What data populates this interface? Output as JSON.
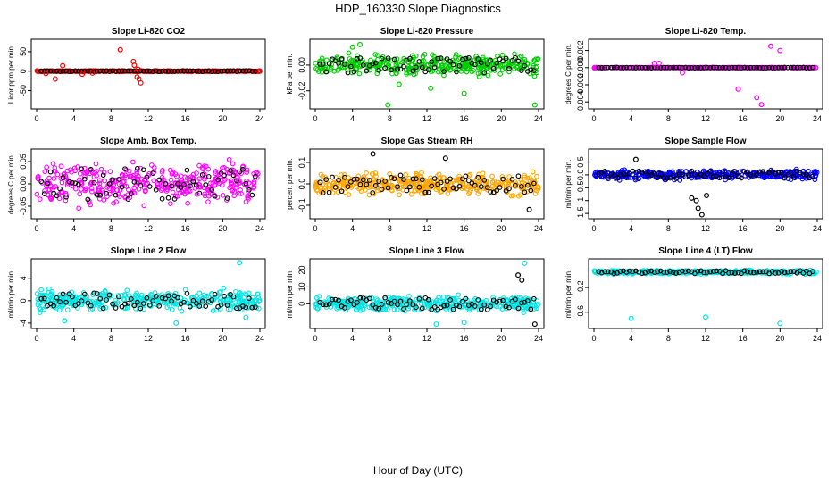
{
  "figure": {
    "title": "HDP_160330  Slope Diagnostics",
    "xlabel": "Hour of Day (UTC)"
  },
  "chart_data": [
    {
      "type": "scatter",
      "title": "Slope Li-820 CO2",
      "ylabel": "Licor ppm per min.",
      "xlim": [
        0,
        24
      ],
      "ylim": [
        -90,
        75
      ],
      "xticks": [
        0,
        4,
        8,
        12,
        16,
        20,
        24
      ],
      "yticks": [
        -50,
        0,
        50
      ],
      "color": "#ff0000",
      "baseline": 0,
      "spread": 2,
      "series": [
        {
          "name": "outliers",
          "color": "#ff0000",
          "x": [
            1.0,
            2.0,
            2.8,
            4.9,
            9.0,
            10.4,
            10.5,
            10.8,
            11.0,
            11.2,
            10.9,
            6.0
          ],
          "y": [
            -6,
            -20,
            14,
            -8,
            55,
            25,
            15,
            -15,
            -20,
            -30,
            5,
            -5
          ]
        }
      ]
    },
    {
      "type": "scatter",
      "title": "Slope Li-820 Pressure",
      "ylabel": "kPa per min.",
      "xlim": [
        0,
        24
      ],
      "ylim": [
        -0.032,
        0.018
      ],
      "xticks": [
        0,
        4,
        8,
        12,
        16,
        20,
        24
      ],
      "yticks": [
        -0.02,
        0.0
      ],
      "color": "#00cc00",
      "baseline": 0,
      "spread": 0.01,
      "series": [
        {
          "name": "outliers",
          "color": "#00cc00",
          "x": [
            7.8,
            16.0,
            23.6,
            12.4,
            9.0,
            4.0,
            4.8
          ],
          "y": [
            -0.031,
            -0.022,
            -0.031,
            -0.018,
            -0.015,
            0.014,
            0.016
          ]
        }
      ]
    },
    {
      "type": "scatter",
      "title": "Slope Li-820 Temp.",
      "ylabel": "degrees C per min.",
      "xlim": [
        0,
        24
      ],
      "ylim": [
        -0.0045,
        0.003
      ],
      "xticks": [
        0,
        4,
        8,
        12,
        16,
        20,
        24
      ],
      "yticks": [
        -0.004,
        -0.002,
        0.0,
        0.002
      ],
      "color": "#ff00ff",
      "baseline": 0,
      "spread": 5e-05,
      "series": [
        {
          "name": "outliers",
          "color": "#ff00ff",
          "x": [
            6.5,
            7.0,
            9.5,
            18.0,
            15.5,
            17.5,
            19.0,
            20.0
          ],
          "y": [
            0.0005,
            0.0005,
            -0.0006,
            -0.0043,
            -0.0025,
            -0.0035,
            0.0025,
            0.002
          ]
        }
      ]
    },
    {
      "type": "scatter",
      "title": "Slope Amb. Box Temp.",
      "ylabel": "degrees C per min.",
      "xlim": [
        0,
        24
      ],
      "ylim": [
        -0.072,
        0.072
      ],
      "xticks": [
        0,
        4,
        8,
        12,
        16,
        20,
        24
      ],
      "yticks": [
        -0.05,
        0.0,
        0.05
      ],
      "color": "#ff00ff",
      "baseline": 0,
      "spread": 0.06,
      "series": []
    },
    {
      "type": "scatter",
      "title": "Slope Gas Stream RH",
      "ylabel": "percent per min.",
      "xlim": [
        0,
        24
      ],
      "ylim": [
        -0.15,
        0.15
      ],
      "xticks": [
        0,
        4,
        8,
        12,
        16,
        20,
        24
      ],
      "yticks": [
        -0.1,
        0.0,
        0.1
      ],
      "color": "#ffa500",
      "baseline": 0,
      "spread": 0.07,
      "series": [
        {
          "name": "outliers",
          "color": "#000000",
          "x": [
            6.2,
            14.0,
            23.0
          ],
          "y": [
            0.14,
            0.12,
            -0.12
          ]
        }
      ]
    },
    {
      "type": "scatter",
      "title": "Slope Sample Flow",
      "ylabel": "ml/min per min.",
      "xlim": [
        0,
        24
      ],
      "ylim": [
        -1.6,
        0.9
      ],
      "xticks": [
        0,
        4,
        8,
        12,
        16,
        20,
        24
      ],
      "yticks": [
        -1.5,
        -1.0,
        -0.5,
        0.0,
        0.5
      ],
      "color": "#0000ff",
      "baseline": 0,
      "spread": 0.25,
      "series": [
        {
          "name": "outliers",
          "color": "#000000",
          "x": [
            4.5,
            10.5,
            11.0,
            11.6,
            11.2,
            12.1
          ],
          "y": [
            0.6,
            -0.9,
            -1.0,
            -1.55,
            -1.3,
            -0.8
          ]
        }
      ]
    },
    {
      "type": "scatter",
      "title": "Slope Line 2 Flow",
      "ylabel": "ml/min per min.",
      "xlim": [
        0,
        24
      ],
      "ylim": [
        -4.5,
        7.0
      ],
      "xticks": [
        0,
        4,
        8,
        12,
        16,
        20,
        24
      ],
      "yticks": [
        -4,
        0,
        4
      ],
      "color": "#00e5e5",
      "baseline": 0,
      "spread": 2.5,
      "series": [
        {
          "name": "outliers",
          "color": "#00e5e5",
          "x": [
            21.8,
            3.0,
            15.0,
            22.5
          ],
          "y": [
            6.8,
            -3.6,
            -4.0,
            -3.0
          ]
        }
      ]
    },
    {
      "type": "scatter",
      "title": "Slope Line 3 Flow",
      "ylabel": "ml/min per min.",
      "xlim": [
        0,
        24
      ],
      "ylim": [
        -13,
        25
      ],
      "xticks": [
        0,
        4,
        8,
        12,
        16,
        20,
        24
      ],
      "yticks": [
        0,
        10,
        20
      ],
      "color": "#00e5e5",
      "baseline": 0,
      "spread": 6,
      "series": [
        {
          "name": "outliers",
          "color": "#000000",
          "x": [
            21.8,
            22.2,
            23.6
          ],
          "y": [
            17,
            14,
            -12
          ]
        },
        {
          "name": "outliers2",
          "color": "#00e5e5",
          "x": [
            22.5,
            13.0,
            16.0
          ],
          "y": [
            24,
            -12,
            -11
          ]
        }
      ]
    },
    {
      "type": "scatter",
      "title": "Slope Line 4 (LT) Flow",
      "ylabel": "ml/min per min.",
      "xlim": [
        0,
        24
      ],
      "ylim": [
        -0.82,
        0.22
      ],
      "xticks": [
        0,
        4,
        8,
        12,
        16,
        20,
        24
      ],
      "yticks": [
        -0.6,
        -0.2
      ],
      "color": "#00e5e5",
      "baseline": 0.05,
      "spread": 0.04,
      "series": [
        {
          "name": "outliers",
          "color": "#00e5e5",
          "x": [
            4.0,
            12.0,
            20.0
          ],
          "y": [
            -0.7,
            -0.68,
            -0.78
          ]
        }
      ]
    }
  ]
}
